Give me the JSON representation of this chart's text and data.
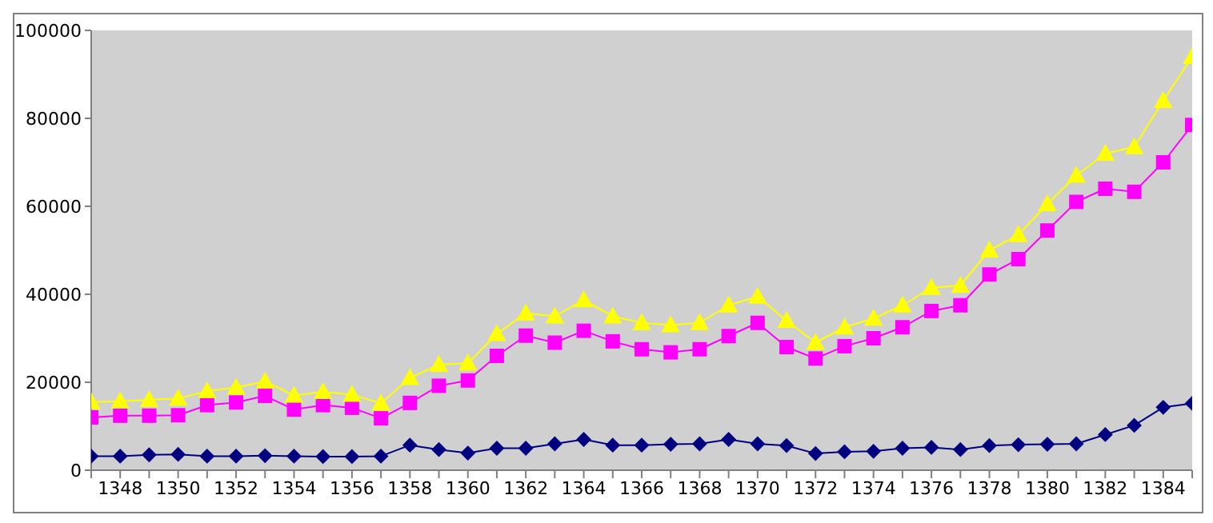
{
  "chart_data": {
    "type": "line",
    "categories": [
      null,
      "1348",
      null,
      "1350",
      null,
      "1352",
      null,
      "1354",
      null,
      "1356",
      null,
      "1358",
      null,
      "1360",
      null,
      "1362",
      null,
      "1364",
      null,
      "1366",
      null,
      "1368",
      null,
      "1370",
      null,
      "1372",
      null,
      "1374",
      null,
      "1376",
      null,
      "1378",
      null,
      "1380",
      null,
      "1382",
      null,
      "1384",
      null
    ],
    "ylim": [
      0,
      100000
    ],
    "yticks": [
      0,
      20000,
      40000,
      60000,
      80000,
      100000
    ],
    "grid": false,
    "legend": false,
    "series": [
      {
        "color": "#000080",
        "marker": "diamond",
        "values": [
          3200,
          3200,
          3500,
          3600,
          3200,
          3200,
          3300,
          3200,
          3100,
          3100,
          3200,
          5700,
          4700,
          3900,
          5000,
          5000,
          6000,
          7000,
          5700,
          5700,
          5900,
          6000,
          7000,
          6000,
          5600,
          3800,
          4200,
          4300,
          5000,
          5200,
          4700,
          5600,
          5800,
          5900,
          6000,
          8100,
          10200,
          14300,
          15200
        ]
      },
      {
        "color": "#ff00ff",
        "marker": "square",
        "values": [
          12000,
          12400,
          12400,
          12500,
          14800,
          15400,
          16900,
          13800,
          14800,
          14200,
          11800,
          15300,
          19200,
          20400,
          26000,
          30600,
          29000,
          31700,
          29300,
          27500,
          26800,
          27500,
          30500,
          33500,
          28000,
          25400,
          28200,
          30000,
          32500,
          36200,
          37500,
          44500,
          48000,
          54500,
          61000,
          64000,
          63300,
          70000,
          78500
        ]
      },
      {
        "color": "#ffff00",
        "marker": "triangle",
        "values": [
          15500,
          15700,
          16000,
          16300,
          18000,
          18800,
          20200,
          17000,
          17800,
          17200,
          15200,
          21000,
          24000,
          24300,
          31000,
          35700,
          35000,
          38700,
          35000,
          33500,
          33000,
          33500,
          37500,
          39500,
          34000,
          29000,
          32500,
          34500,
          37500,
          41500,
          42000,
          50000,
          53500,
          60500,
          67000,
          72000,
          73500,
          84000,
          94000
        ]
      }
    ]
  }
}
